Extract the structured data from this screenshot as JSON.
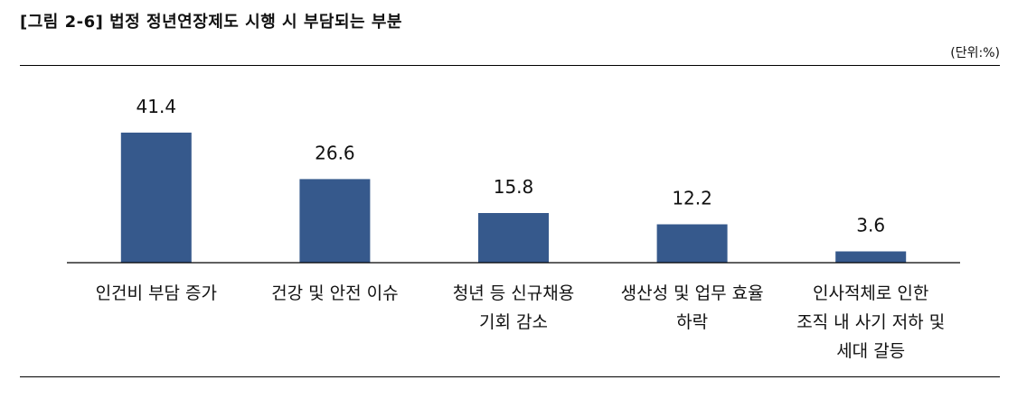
{
  "header": {
    "title": "[그림 2-6] 법정 정년연장제도 시행 시 부담되는 부분",
    "unit": "(단위:%)"
  },
  "colors": {
    "bar": "#36598c",
    "axis": "#000000"
  },
  "chart_data": {
    "type": "bar",
    "categories": [
      [
        "인건비 부담 증가"
      ],
      [
        "건강 및 안전 이슈"
      ],
      [
        "청년 등 신규채용",
        "기회 감소"
      ],
      [
        "생산성 및 업무 효율",
        "하락"
      ],
      [
        "인사적체로 인한",
        "조직 내 사기 저하 및",
        "세대 갈등"
      ]
    ],
    "values": [
      41.4,
      26.6,
      15.8,
      12.2,
      3.6
    ],
    "value_labels": [
      "41.4",
      "26.6",
      "15.8",
      "12.2",
      "3.6"
    ],
    "ylim": [
      0,
      50
    ],
    "grid": false,
    "legend": "none"
  }
}
